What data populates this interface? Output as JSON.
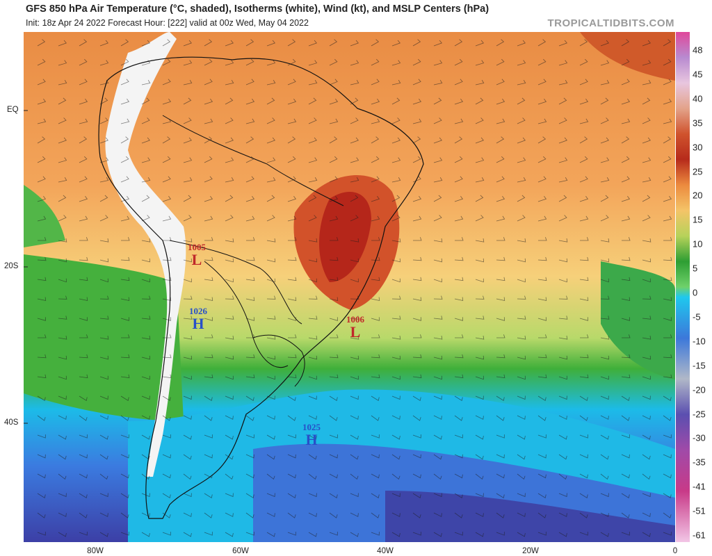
{
  "header": {
    "title": "GFS 850 hPa Air Temperature (°C, shaded), Isotherms (white), Wind (kt), and MSLP Centers (hPa)",
    "subtitle": "Init: 18z Apr 24 2022   Forecast Hour: [222]   valid at 00z Wed, May 04 2022",
    "brand": "TROPICALTIDBITS.COM"
  },
  "axes": {
    "lat_labels": [
      "EQ",
      "20S",
      "40S"
    ],
    "lon_labels": [
      "80W",
      "60W",
      "40W",
      "20W",
      "0"
    ]
  },
  "colorbar": {
    "labels": [
      "48",
      "45",
      "40",
      "35",
      "30",
      "25",
      "20",
      "15",
      "10",
      "5",
      "0",
      "-5",
      "-10",
      "-15",
      "-20",
      "-25",
      "-30",
      "-35",
      "-41",
      "-51",
      "-61"
    ]
  },
  "pressure_centers": [
    {
      "type": "L",
      "value": "1005",
      "color": "#c0282a"
    },
    {
      "type": "H",
      "value": "1026",
      "color": "#2850c8"
    },
    {
      "type": "L",
      "value": "1006",
      "color": "#c0282a"
    },
    {
      "type": "H",
      "value": "1025",
      "color": "#2850c8"
    }
  ],
  "colors": {
    "hot": "#b52b19",
    "warm": "#e87a3c",
    "mild": "#f0b25c",
    "yellow": "#f2dc7a",
    "green": "#3fae3a",
    "cyan": "#18b6ec",
    "blue": "#3d6fd6",
    "cold": "#3e4ba8"
  }
}
